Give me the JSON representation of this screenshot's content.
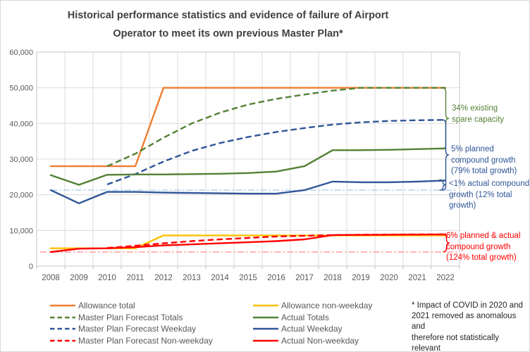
{
  "figure": {
    "title_lines": [
      "Historical performance statistics and evidence of failure of Airport",
      "Operator to meet its own previous Master Plan*"
    ]
  },
  "chart_data": {
    "type": "line",
    "title": "Historical performance statistics and evidence of failure of Airport Operator to meet its own previous Master Plan*",
    "x": [
      2008,
      2009,
      2010,
      2011,
      2012,
      2013,
      2014,
      2015,
      2016,
      2017,
      2018,
      2019,
      2020,
      2021,
      2022
    ],
    "y_tick_labels": [
      "60,000",
      "50,000",
      "40,000",
      "30,000",
      "20,000",
      "10,000",
      "0"
    ],
    "ylim": [
      0,
      60000
    ],
    "grid": true,
    "legend_position": "bottom",
    "series": [
      {
        "name": "allowance-total",
        "label": "Allowance total",
        "color": "#ED7D31",
        "style": "solid",
        "values": [
          28000,
          28000,
          28000,
          28000,
          50000,
          50000,
          50000,
          50000,
          50000,
          50000,
          50000,
          50000,
          50000,
          50000,
          50000
        ]
      },
      {
        "name": "allowance-non-weekday",
        "label": "Allowance non-weekday",
        "color": "#FFC000",
        "style": "solid",
        "values": [
          5000,
          5000,
          5000,
          5000,
          8600,
          8600,
          8600,
          8600,
          8600,
          8600,
          8600,
          8600,
          8600,
          8600,
          8600
        ]
      },
      {
        "name": "master-plan-forecast-totals",
        "label": "Master Plan Forecast Totals",
        "color": "#538135",
        "style": "dashed",
        "values": [
          null,
          null,
          28000,
          31500,
          36000,
          40000,
          43000,
          45300,
          46900,
          48100,
          49200,
          50000,
          50000,
          50000,
          50000
        ]
      },
      {
        "name": "master-plan-forecast-weekday",
        "label": "Master Plan Forecast Weekday",
        "color": "#2F5597",
        "style": "dashed",
        "values": [
          null,
          null,
          22900,
          25800,
          29300,
          32300,
          34500,
          36200,
          37600,
          38700,
          39700,
          40300,
          40700,
          40900,
          41000
        ]
      },
      {
        "name": "master-plan-forecast-non-weekday",
        "label": "Master Plan Forecast Non-weekday",
        "color": "#FF0000",
        "style": "dashed",
        "values": [
          null,
          null,
          5100,
          5700,
          6400,
          7000,
          7500,
          7900,
          8300,
          8500,
          8700,
          8800,
          8850,
          8900,
          8900
        ]
      },
      {
        "name": "actual-totals",
        "label": "Actual Totals",
        "color": "#538135",
        "style": "solid",
        "values": [
          25500,
          22800,
          25600,
          25700,
          25700,
          25800,
          25900,
          26100,
          26500,
          28000,
          32500,
          32500,
          32600,
          32800,
          33000
        ]
      },
      {
        "name": "actual-weekday",
        "label": "Actual Weekday",
        "color": "#2F5597",
        "style": "solid",
        "values": [
          21300,
          17600,
          20800,
          20800,
          20600,
          20500,
          20400,
          20300,
          20300,
          21300,
          23700,
          23500,
          23500,
          23700,
          24000
        ]
      },
      {
        "name": "actual-non-weekday",
        "label": "Actual Non-weekday",
        "color": "#FF0000",
        "style": "solid",
        "values": [
          3950,
          4900,
          5000,
          5300,
          5800,
          6100,
          6400,
          6700,
          7000,
          7500,
          8700,
          8750,
          8800,
          8850,
          8900
        ]
      }
    ],
    "reference_lines": [
      {
        "id": "weekday-2008-baseline",
        "value": 21300,
        "color": "#9DC3E6",
        "style": "dashdot"
      },
      {
        "id": "non-weekday-2008-baseline",
        "value": 3950,
        "color": "#FF8C8C",
        "style": "dashdot"
      }
    ],
    "annotations": [
      {
        "id": "spare-capacity",
        "color": "#538135",
        "brace_from": 50000,
        "brace_to": 32800,
        "lines": [
          "34% existing",
          "spare capacity",
          ""
        ]
      },
      {
        "id": "planned-growth",
        "color": "#2F5597",
        "brace_from": 41000,
        "brace_to": 21300,
        "lines": [
          "5% planned",
          "compound growth",
          "(79% total growth)"
        ]
      },
      {
        "id": "actual-growth",
        "color": "#2F5597",
        "brace_from": 24200,
        "brace_to": 21300,
        "lines": [
          "<1% actual compound",
          "growth (12% total",
          "growth)"
        ]
      },
      {
        "id": "nonweekday-growth",
        "color": "#FF0000",
        "brace_from": 8950,
        "brace_to": 4000,
        "lines": [
          "6% planned & actual",
          "compound growth",
          "(124% total growth)"
        ]
      }
    ],
    "legend": {
      "columns": [
        [
          "allowance-total",
          "master-plan-forecast-totals",
          "master-plan-forecast-weekday",
          "master-plan-forecast-non-weekday"
        ],
        [
          "allowance-non-weekday",
          "actual-totals",
          "actual-weekday",
          "actual-non-weekday"
        ]
      ]
    },
    "footnote_lines": [
      "* Impact of COVID in 2020 and",
      "2021 removed as anomalous and",
      "therefore not statistically",
      "relevant"
    ]
  }
}
